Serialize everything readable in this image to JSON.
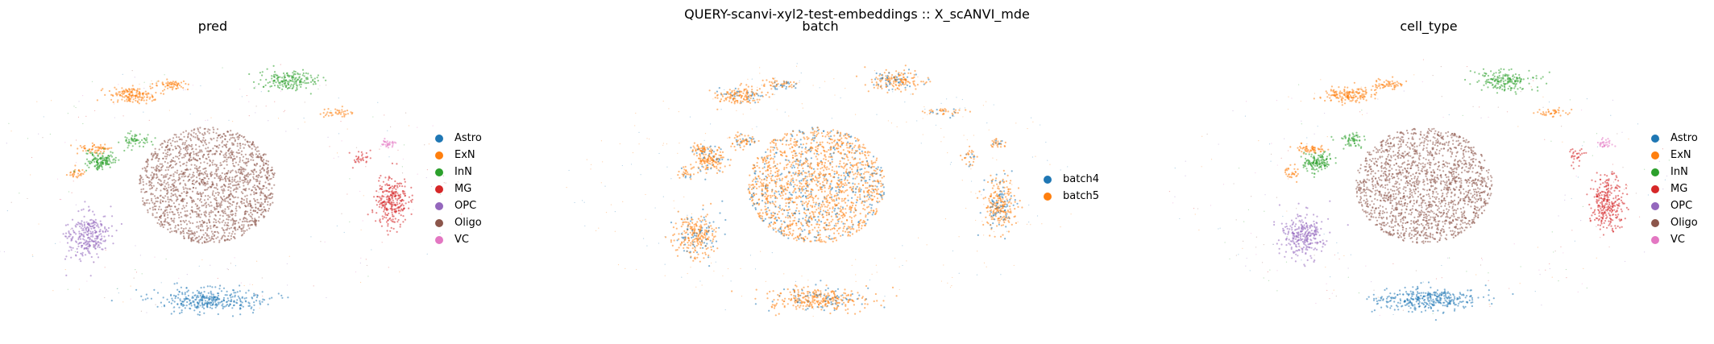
{
  "figure": {
    "suptitle": "QUERY-scanvi-xyl2-test-embeddings :: X_scANVI_mde"
  },
  "chart_data": [
    {
      "type": "scatter",
      "title": "pred",
      "legend_position": "right",
      "grid": false,
      "axes": false,
      "categories": [
        "Astro",
        "ExN",
        "InN",
        "MG",
        "OPC",
        "Oligo",
        "VC"
      ],
      "colors": [
        "#1f77b4",
        "#ff7f0e",
        "#2ca02c",
        "#d62728",
        "#9467bd",
        "#8c564b",
        "#e377c2"
      ]
    },
    {
      "type": "scatter",
      "title": "batch",
      "legend_position": "right",
      "grid": false,
      "axes": false,
      "categories": [
        "batch4",
        "batch5"
      ],
      "colors": [
        "#1f77b4",
        "#ff7f0e"
      ]
    },
    {
      "type": "scatter",
      "title": "cell_type",
      "legend_position": "right",
      "grid": false,
      "axes": false,
      "categories": [
        "Astro",
        "ExN",
        "InN",
        "MG",
        "OPC",
        "Oligo",
        "VC"
      ],
      "colors": [
        "#1f77b4",
        "#ff7f0e",
        "#2ca02c",
        "#d62728",
        "#9467bd",
        "#8c564b",
        "#e377c2"
      ]
    }
  ]
}
